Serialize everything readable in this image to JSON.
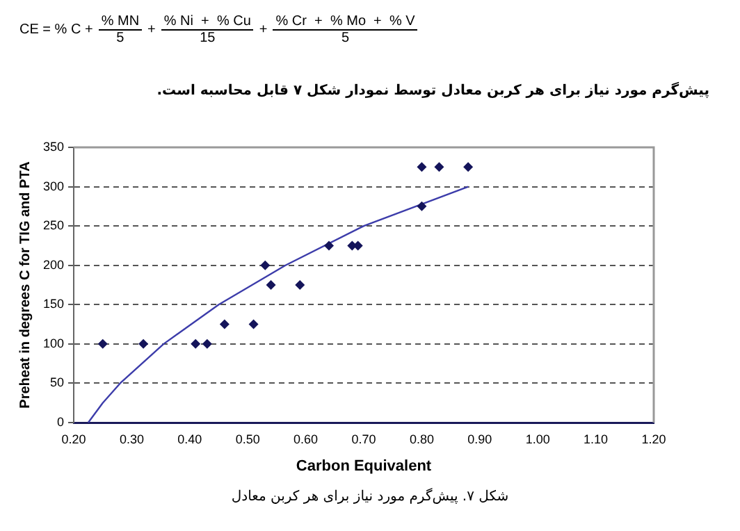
{
  "chart_data": {
    "type": "scatter",
    "xlabel": "Carbon Equivalent",
    "ylabel": "Preheat in degrees C for TIG and PTA",
    "xlim": [
      0.2,
      1.2
    ],
    "xticks": [
      {
        "value": 0.2,
        "label": "0.20"
      },
      {
        "value": 0.3,
        "label": "0.30"
      },
      {
        "value": 0.4,
        "label": "0.40"
      },
      {
        "value": 0.5,
        "label": "0.50"
      },
      {
        "value": 0.6,
        "label": "0.60"
      },
      {
        "value": 0.7,
        "label": "0.70"
      },
      {
        "value": 0.8,
        "label": "0.80"
      },
      {
        "value": 0.9,
        "label": "0.90"
      },
      {
        "value": 1.0,
        "label": "1.00"
      },
      {
        "value": 1.1,
        "label": "1.10"
      },
      {
        "value": 1.2,
        "label": "1.20"
      }
    ],
    "ylim": [
      0,
      350
    ],
    "yticks": [
      0,
      50,
      100,
      150,
      200,
      250,
      300,
      350
    ],
    "grid": "y",
    "legend": false,
    "marker": "diamond",
    "series": [
      {
        "color": "#14145a",
        "x": [
          0.25,
          0.32,
          0.41,
          0.43,
          0.46,
          0.51,
          0.53,
          0.54,
          0.59,
          0.64,
          0.68,
          0.69,
          0.8,
          0.8,
          0.83,
          0.88
        ],
        "values": [
          100,
          100,
          100,
          100,
          125,
          125,
          200,
          175,
          175,
          225,
          225,
          225,
          275,
          325,
          325,
          325
        ]
      },
      {
        "type": "line",
        "color": "#3c3caa",
        "marker": "none",
        "x": [
          0.225,
          0.25,
          0.28,
          0.355,
          0.45,
          0.565,
          0.7,
          0.88
        ],
        "values": [
          0,
          25,
          50,
          100,
          150,
          200,
          250,
          300
        ]
      }
    ],
    "annotations": [
      "CE = % C +",
      "% MN",
      "5",
      "+",
      "% Ni  +  % Cu",
      "15",
      "+",
      "% Cr  +  % Mo  +  % V",
      "5",
      "پیش‌گرم مورد نیاز برای هر کربن معادل توسط نمودار شکل ۷ قابل محاسبه است.",
      "شکل ۷. پیش‌گرم مورد نیاز برای هر کربن معادل"
    ]
  }
}
